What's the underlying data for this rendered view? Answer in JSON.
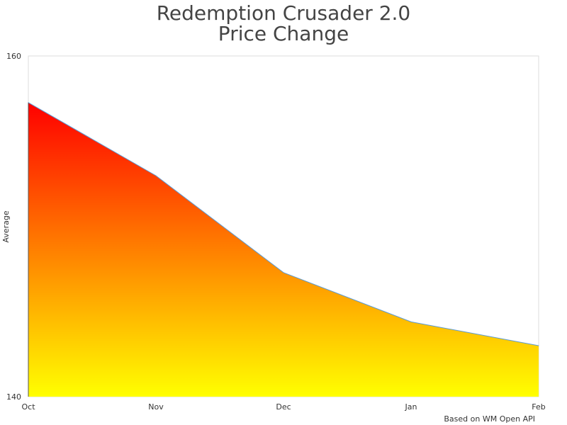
{
  "chart_data": {
    "type": "area",
    "title": [
      "Redemption Crusader 2.0",
      "Price Change"
    ],
    "xlabel": "",
    "ylabel": "Average",
    "categories": [
      "Oct",
      "Nov",
      "Dec",
      "Jan",
      "Feb"
    ],
    "values": [
      157.3,
      153.0,
      147.3,
      144.4,
      143.0
    ],
    "ylim": [
      140,
      160
    ],
    "yticks": [
      "140",
      "160"
    ],
    "grid": false,
    "legend": "none",
    "credit": "Based on WM Open API",
    "colors": {
      "line": "#5b9bd5",
      "fill_top": "#ff0000",
      "fill_bottom": "#ffff00",
      "text": "#333333"
    }
  }
}
